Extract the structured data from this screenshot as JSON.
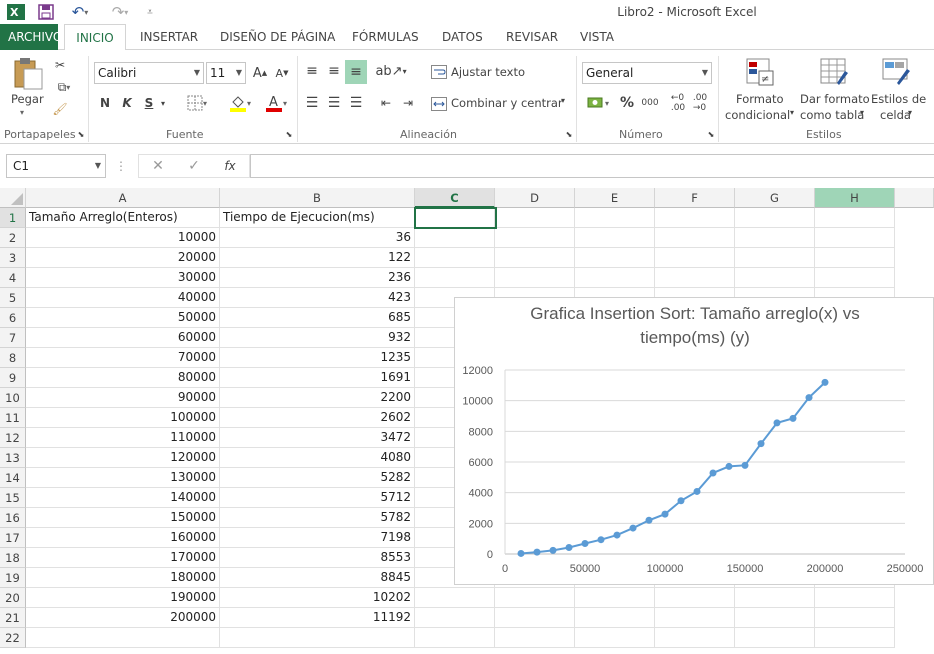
{
  "window": {
    "title": "Libro2 - Microsoft Excel"
  },
  "tabs": [
    "ARCHIVO",
    "INICIO",
    "INSERTAR",
    "DISEÑO DE PÁGINA",
    "FÓRMULAS",
    "DATOS",
    "REVISAR",
    "VISTA"
  ],
  "active_tab": "INICIO",
  "ribbon": {
    "clipboard": {
      "paste_label": "Pegar",
      "group_label": "Portapapeles"
    },
    "font": {
      "font_name": "Calibri",
      "font_size": "11",
      "bold": "N",
      "italic": "K",
      "underline": "S",
      "group_label": "Fuente"
    },
    "alignment": {
      "wrap_text": "Ajustar texto",
      "merge_center": "Combinar y centrar",
      "group_label": "Alineación"
    },
    "number": {
      "format": "General",
      "percent": "%",
      "thousands": "000",
      "group_label": "Número"
    },
    "styles": {
      "conditional_1": "Formato",
      "conditional_2": "condicional",
      "table_1": "Dar formato",
      "table_2": "como tabla",
      "cell_1": "Estilos de",
      "cell_2": "celda",
      "group_label": "Estilos"
    }
  },
  "formula_bar": {
    "name_box": "C1",
    "fx": "fx",
    "value": ""
  },
  "sheet": {
    "columns": [
      "A",
      "B",
      "C",
      "D",
      "E",
      "F",
      "G",
      "H"
    ],
    "selected_column": "C",
    "highlighted_column": "H",
    "rows": [
      {
        "n": "1",
        "a": "Tamaño Arreglo(Enteros)",
        "b": "Tiempo de Ejecucion(ms)"
      },
      {
        "n": "2",
        "a": "10000",
        "b": "36"
      },
      {
        "n": "3",
        "a": "20000",
        "b": "122"
      },
      {
        "n": "4",
        "a": "30000",
        "b": "236"
      },
      {
        "n": "5",
        "a": "40000",
        "b": "423"
      },
      {
        "n": "6",
        "a": "50000",
        "b": "685"
      },
      {
        "n": "7",
        "a": "60000",
        "b": "932"
      },
      {
        "n": "8",
        "a": "70000",
        "b": "1235"
      },
      {
        "n": "9",
        "a": "80000",
        "b": "1691"
      },
      {
        "n": "10",
        "a": "90000",
        "b": "2200"
      },
      {
        "n": "11",
        "a": "100000",
        "b": "2602"
      },
      {
        "n": "12",
        "a": "110000",
        "b": "3472"
      },
      {
        "n": "13",
        "a": "120000",
        "b": "4080"
      },
      {
        "n": "14",
        "a": "130000",
        "b": "5282"
      },
      {
        "n": "15",
        "a": "140000",
        "b": "5712"
      },
      {
        "n": "16",
        "a": "150000",
        "b": "5782"
      },
      {
        "n": "17",
        "a": "160000",
        "b": "7198"
      },
      {
        "n": "18",
        "a": "170000",
        "b": "8553"
      },
      {
        "n": "19",
        "a": "180000",
        "b": "8845"
      },
      {
        "n": "20",
        "a": "190000",
        "b": "10202"
      },
      {
        "n": "21",
        "a": "200000",
        "b": "11192"
      },
      {
        "n": "22",
        "a": "",
        "b": ""
      }
    ]
  },
  "colors": {
    "excel_green": "#217346",
    "series": "#5b9bd5"
  },
  "chart_data": {
    "type": "line",
    "title_line1": "Grafica Insertion Sort: Tamaño arreglo(x) vs",
    "title_line2": "tiempo(ms) (y)",
    "x": [
      10000,
      20000,
      30000,
      40000,
      50000,
      60000,
      70000,
      80000,
      90000,
      100000,
      110000,
      120000,
      130000,
      140000,
      150000,
      160000,
      170000,
      180000,
      190000,
      200000
    ],
    "series": [
      {
        "values": [
          36,
          122,
          236,
          423,
          685,
          932,
          1235,
          1691,
          2200,
          2602,
          3472,
          4080,
          5282,
          5712,
          5782,
          7198,
          8553,
          8845,
          10202,
          11192
        ]
      }
    ],
    "xlim": [
      0,
      250000
    ],
    "ylim": [
      0,
      12000
    ],
    "x_ticks": [
      "0",
      "50000",
      "100000",
      "150000",
      "200000",
      "250000"
    ],
    "y_ticks": [
      "0",
      "2000",
      "4000",
      "6000",
      "8000",
      "10000",
      "12000"
    ],
    "markers": true,
    "grid": "horizontal",
    "legend": "none"
  }
}
